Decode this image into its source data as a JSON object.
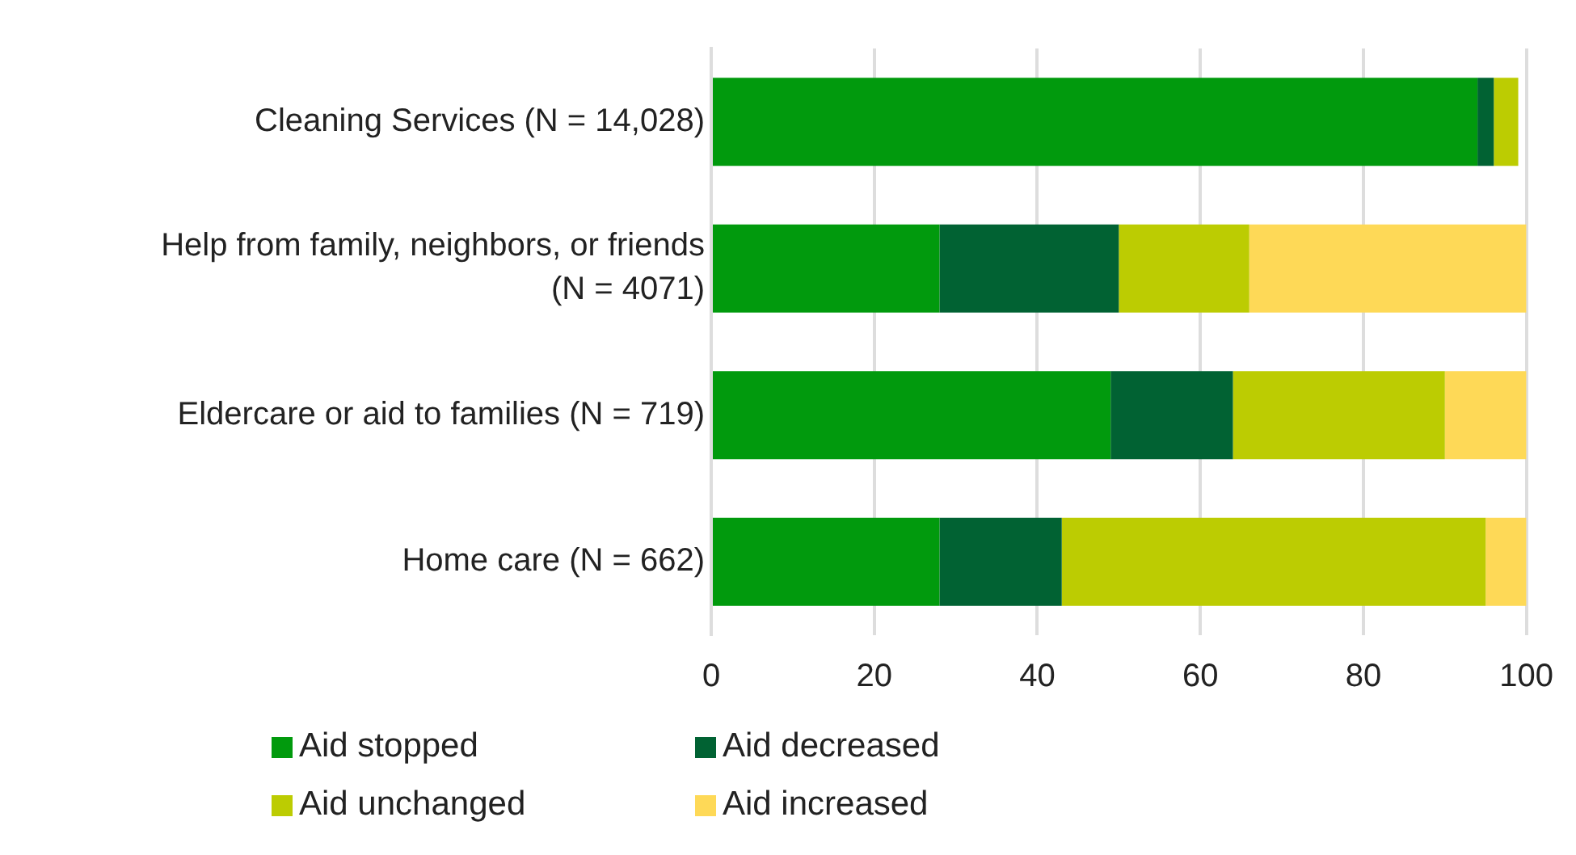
{
  "chart_data": {
    "type": "bar",
    "orientation": "horizontal",
    "stacked": true,
    "categories": [
      "Cleaning Services (N = 14,028)",
      "Help from family, neighbors, or friends\n(N = 4071)",
      "Eldercare or aid to families (N = 719)",
      "Home care (N = 662)"
    ],
    "series": [
      {
        "name": "Aid stopped",
        "color": "#019a0d",
        "values": [
          94,
          28,
          49,
          28
        ]
      },
      {
        "name": "Aid decreased",
        "color": "#016233",
        "values": [
          2,
          22,
          15,
          15
        ]
      },
      {
        "name": "Aid unchanged",
        "color": "#bccc02",
        "values": [
          3,
          16,
          26,
          52
        ]
      },
      {
        "name": "Aid increased",
        "color": "#fed957",
        "values": [
          0,
          34,
          10,
          5
        ]
      }
    ],
    "xlim": [
      0,
      100
    ],
    "xticks": [
      0,
      20,
      40,
      60,
      80,
      100
    ],
    "grid": "x",
    "legend": "bottom"
  }
}
